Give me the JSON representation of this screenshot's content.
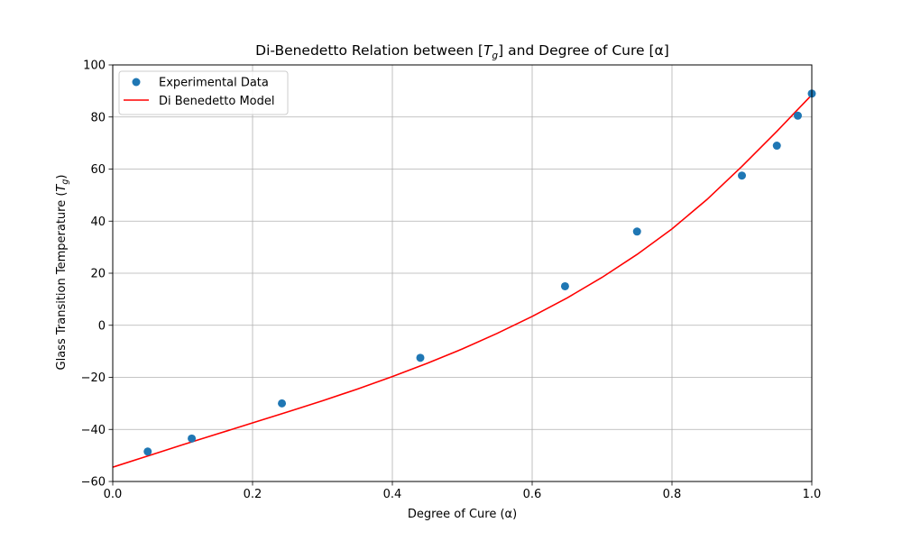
{
  "chart_data": {
    "type": "scatter",
    "title": "Di-Benedetto Relation between [T_g] and Degree of Cure [α]",
    "title_parts": {
      "before": "Di-Benedetto Relation between [",
      "var": "T",
      "sub": "g",
      "after": "] and Degree of Cure [α]"
    },
    "xlabel": "Degree of Cure (α)",
    "ylabel": "Glass Transition Temperature (T_g)",
    "ylabel_parts": {
      "before": "Glass Transition Temperature (",
      "var": "T",
      "sub": "g",
      "after": ")"
    },
    "xlim": [
      0.0,
      1.0
    ],
    "ylim": [
      -60,
      100
    ],
    "x_ticks": [
      "0.0",
      "0.2",
      "0.4",
      "0.6",
      "0.8",
      "1.0"
    ],
    "y_ticks": [
      "−60",
      "−40",
      "−20",
      "0",
      "20",
      "40",
      "60",
      "80",
      "100"
    ],
    "grid": true,
    "legend_position": "upper left",
    "series": [
      {
        "name": "Experimental Data",
        "kind": "scatter",
        "color": "#1f77b4",
        "x": [
          0.05,
          0.113,
          0.242,
          0.44,
          0.647,
          0.75,
          0.9,
          0.95,
          0.98,
          1.0
        ],
        "y": [
          -48.5,
          -43.5,
          -30.0,
          -12.5,
          15.0,
          36.0,
          57.5,
          69.0,
          80.5,
          89.0
        ]
      },
      {
        "name": "Di Benedetto Model",
        "kind": "line",
        "color": "#ff0000",
        "x": [
          0.0,
          0.05,
          0.1,
          0.15,
          0.2,
          0.25,
          0.3,
          0.35,
          0.4,
          0.45,
          0.5,
          0.55,
          0.6,
          0.65,
          0.7,
          0.75,
          0.8,
          0.85,
          0.9,
          0.95,
          1.0
        ],
        "y": [
          -54.5,
          -50.2,
          -45.9,
          -41.7,
          -37.5,
          -33.3,
          -29.0,
          -24.5,
          -19.7,
          -14.6,
          -9.1,
          -3.1,
          3.4,
          10.5,
          18.4,
          27.2,
          37.0,
          48.3,
          61.0,
          74.5,
          88.5
        ]
      }
    ]
  }
}
